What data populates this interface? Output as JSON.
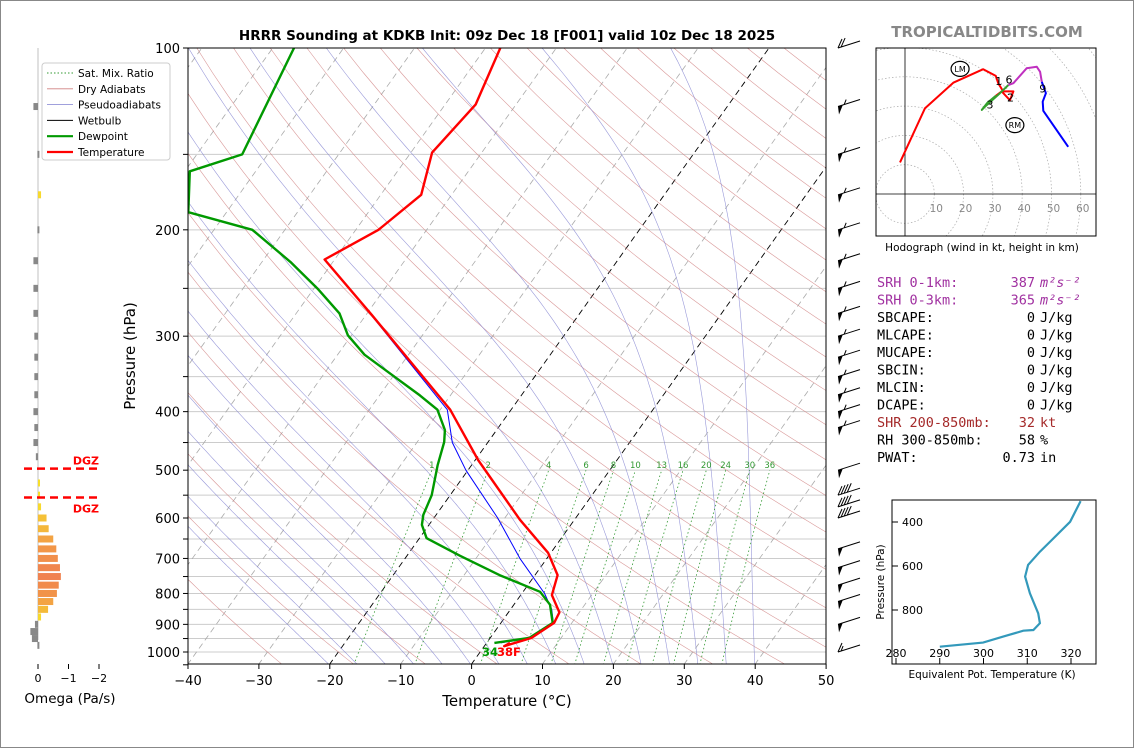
{
  "brand": "TROPICALTIDBITS.COM",
  "chart_data": [
    {
      "type": "line",
      "subtype": "skew-t log-p sounding",
      "title": "HRRR Sounding at KDKB Init: 09z Dec 18 [F001] valid 10z Dec 18 2025",
      "xlabel": "Temperature (°C)",
      "ylabel": "Pressure (hPa)",
      "xlim": [
        -40,
        50
      ],
      "ylim": [
        1050,
        100
      ],
      "yscale": "log",
      "x_ticks": [
        "−40",
        "−30",
        "−20",
        "−10",
        "0",
        "10",
        "20",
        "30",
        "40",
        "50"
      ],
      "y_ticks": [
        "100",
        "200",
        "300",
        "400",
        "500",
        "600",
        "700",
        "800",
        "900",
        "1000"
      ],
      "legend_position": "top-left",
      "legend": [
        "Sat. Mix. Ratio",
        "Dry Adiabats",
        "Pseudoadiabats",
        "Wetbulb",
        "Dewpoint",
        "Temperature"
      ],
      "mixing_ratio_labels": [
        "1",
        "2",
        "4",
        "6",
        "8",
        "10",
        "13",
        "16",
        "20",
        "24",
        "30",
        "36"
      ],
      "surface_labels": {
        "dewpoint": "34",
        "temperature": "38F"
      },
      "colors": {
        "temperature": "#ff0000",
        "dewpoint": "#009900",
        "wetbulb": "#0000ff"
      },
      "series": [
        {
          "name": "Temperature",
          "pressure": [
            966,
            978,
            948,
            895,
            860,
            805,
            746,
            685,
            604,
            481,
            397,
            277,
            224,
            200,
            175,
            149,
            124,
            100
          ],
          "values": [
            3.3,
            2.8,
            5.8,
            7.5,
            7.2,
            4.4,
            3.2,
            -0.4,
            -7.7,
            -19.6,
            -28.6,
            -49.1,
            -61.4,
            -56.8,
            -54.3,
            -57.0,
            -55.7,
            -57.9
          ]
        },
        {
          "name": "Dewpoint",
          "pressure": [
            966,
            948,
            895,
            835,
            795,
            746,
            693,
            648,
            616,
            593,
            550,
            490,
            449,
            429,
            397,
            376,
            322,
            299,
            275,
            251,
            226,
            200,
            187,
            160,
            150,
            100
          ],
          "values": [
            1.1,
            5.5,
            7.3,
            5.1,
            2.4,
            -5.0,
            -12.5,
            -19.0,
            -21.0,
            -21.8,
            -22.6,
            -24.8,
            -26.2,
            -27.3,
            -30.4,
            -34.3,
            -46.2,
            -50.5,
            -53.9,
            -59.3,
            -66.0,
            -74.6,
            -85.4,
            -89.3,
            -83.6,
            -87.0
          ]
        },
        {
          "name": "Wetbulb",
          "pressure": [
            966,
            948,
            895,
            850,
            800,
            700,
            600,
            500,
            450,
            397,
            277,
            224,
            200,
            175,
            149,
            124,
            100
          ],
          "values": [
            2.0,
            5.6,
            7.4,
            5.8,
            3.2,
            -3.8,
            -11.0,
            -20.3,
            -25.0,
            -29.0,
            -49.2,
            -61.4,
            -56.8,
            -54.3,
            -57.0,
            -55.7,
            -57.9
          ]
        }
      ],
      "wind_barbs": {
        "pressure": [
          100,
          125,
          150,
          175,
          200,
          225,
          250,
          275,
          300,
          325,
          350,
          375,
          400,
          425,
          500,
          550,
          575,
          600,
          675,
          725,
          775,
          825,
          900,
          1000
        ],
        "speed_kt": [
          20,
          55,
          55,
          55,
          55,
          55,
          55,
          55,
          55,
          55,
          55,
          55,
          55,
          55,
          50,
          40,
          40,
          40,
          50,
          50,
          50,
          50,
          50,
          15
        ]
      }
    },
    {
      "type": "bar",
      "subtype": "omega profile",
      "xlabel": "Omega (Pa/s)",
      "x_ticks": [
        "0",
        "−1",
        "−2"
      ],
      "xlim": [
        0.3,
        -2
      ],
      "dgz_label": "DGZ",
      "dgz_pressure": [
        497,
        555
      ],
      "pressure": [
        1000,
        975,
        950,
        925,
        900,
        875,
        850,
        825,
        800,
        775,
        750,
        725,
        700,
        675,
        650,
        625,
        600,
        575,
        550,
        525,
        475,
        450,
        425,
        400,
        375,
        350,
        325,
        300,
        275,
        250,
        225,
        200,
        175,
        150,
        125
      ],
      "values": [
        0.0,
        0.02,
        0.2,
        0.25,
        0.1,
        -0.1,
        -0.33,
        -0.5,
        -0.62,
        -0.68,
        -0.75,
        -0.72,
        -0.65,
        -0.6,
        -0.5,
        -0.35,
        -0.28,
        -0.1,
        -0.05,
        -0.05,
        0.07,
        0.15,
        0.12,
        0.15,
        0.12,
        0.12,
        0.12,
        0.12,
        0.15,
        0.15,
        0.15,
        0.02,
        -0.1,
        0.02,
        0.15
      ]
    },
    {
      "type": "line",
      "subtype": "hodograph",
      "xlabel": "Hodograph (wind in kt, height in km)",
      "ring_labels": [
        "10",
        "20",
        "30",
        "40",
        "50",
        "60"
      ],
      "height_labels": [
        {
          "t": "1",
          "u": 32,
          "v": 38.5
        },
        {
          "t": "2",
          "u": 36,
          "v": 33
        },
        {
          "t": "3",
          "u": 29,
          "v": 30.5
        },
        {
          "t": "6",
          "u": 35.5,
          "v": 39
        },
        {
          "t": "9",
          "u": 47,
          "v": 36
        }
      ],
      "storm_motion": {
        "LM": {
          "label": "LM",
          "u": 18.8,
          "v": 42.7
        },
        "RM": {
          "label": "RM",
          "u": 37.5,
          "v": 23.5
        }
      },
      "series": [
        {
          "color": "#ff0000",
          "u": [
            -1.7,
            6.8,
            16.5,
            26.7,
            31,
            31.8,
            33.5,
            37,
            35.8,
            33,
            31
          ],
          "v": [
            10.8,
            29.2,
            38,
            42.6,
            40.3,
            37.8,
            35,
            35,
            32,
            35,
            33.5
          ]
        },
        {
          "color": "#33a02c",
          "u": [
            31,
            28,
            26.2,
            27.5,
            32.4,
            35.3
          ],
          "v": [
            33.5,
            31,
            28.7,
            30,
            34.4,
            37.2
          ]
        },
        {
          "color": "#c030c0",
          "u": [
            35.3,
            37,
            41.5,
            45,
            46.1,
            46.7
          ],
          "v": [
            37.2,
            37.8,
            42.9,
            43.4,
            41.7,
            38.3
          ]
        },
        {
          "color": "#0000ff",
          "u": [
            46.7,
            48.1,
            47,
            47.2,
            55.7
          ],
          "v": [
            38.3,
            34.4,
            31.5,
            28.4,
            16.1
          ]
        }
      ]
    },
    {
      "type": "line",
      "subtype": "theta-e profile",
      "xlabel": "Equivalent Pot. Temperature (K)",
      "ylabel": "Pressure (hPa)",
      "x_ticks": [
        "280",
        "290",
        "300",
        "310",
        "320"
      ],
      "y_ticks": [
        "400",
        "600",
        "800"
      ],
      "color": "#3399bb",
      "pressure": [
        305,
        399,
        482,
        535,
        595,
        648,
        724,
        815,
        860,
        891,
        894,
        921,
        948,
        967
      ],
      "values": [
        322.2,
        319.8,
        315.6,
        312.9,
        310.2,
        309.5,
        310.6,
        312.5,
        312.9,
        311.4,
        309.1,
        304.5,
        299.9,
        290.0
      ]
    }
  ],
  "parameters": [
    {
      "label": "SRH 0-1km:",
      "value": "387",
      "unit": "m²s⁻²",
      "color": "#a030a0"
    },
    {
      "label": "SRH 0-3km:",
      "value": "365",
      "unit": "m²s⁻²",
      "color": "#a030a0"
    },
    {
      "label": "SBCAPE:",
      "value": "0",
      "unit": "J/kg",
      "color": "#000000"
    },
    {
      "label": "MLCAPE:",
      "value": "0",
      "unit": "J/kg",
      "color": "#000000"
    },
    {
      "label": "MUCAPE:",
      "value": "0",
      "unit": "J/kg",
      "color": "#000000"
    },
    {
      "label": "SBCIN:",
      "value": "0",
      "unit": "J/kg",
      "color": "#000000"
    },
    {
      "label": "MLCIN:",
      "value": "0",
      "unit": "J/kg",
      "color": "#000000"
    },
    {
      "label": "DCAPE:",
      "value": "0",
      "unit": "J/kg",
      "color": "#000000"
    },
    {
      "label": "SHR 200-850mb:",
      "value": "32",
      "unit": "kt",
      "color": "#a52a2a"
    },
    {
      "label": "RH 300-850mb:",
      "value": "58",
      "unit": "%",
      "color": "#000000"
    },
    {
      "label": "PWAT:",
      "value": "0.73",
      "unit": "in",
      "color": "#000000"
    }
  ]
}
